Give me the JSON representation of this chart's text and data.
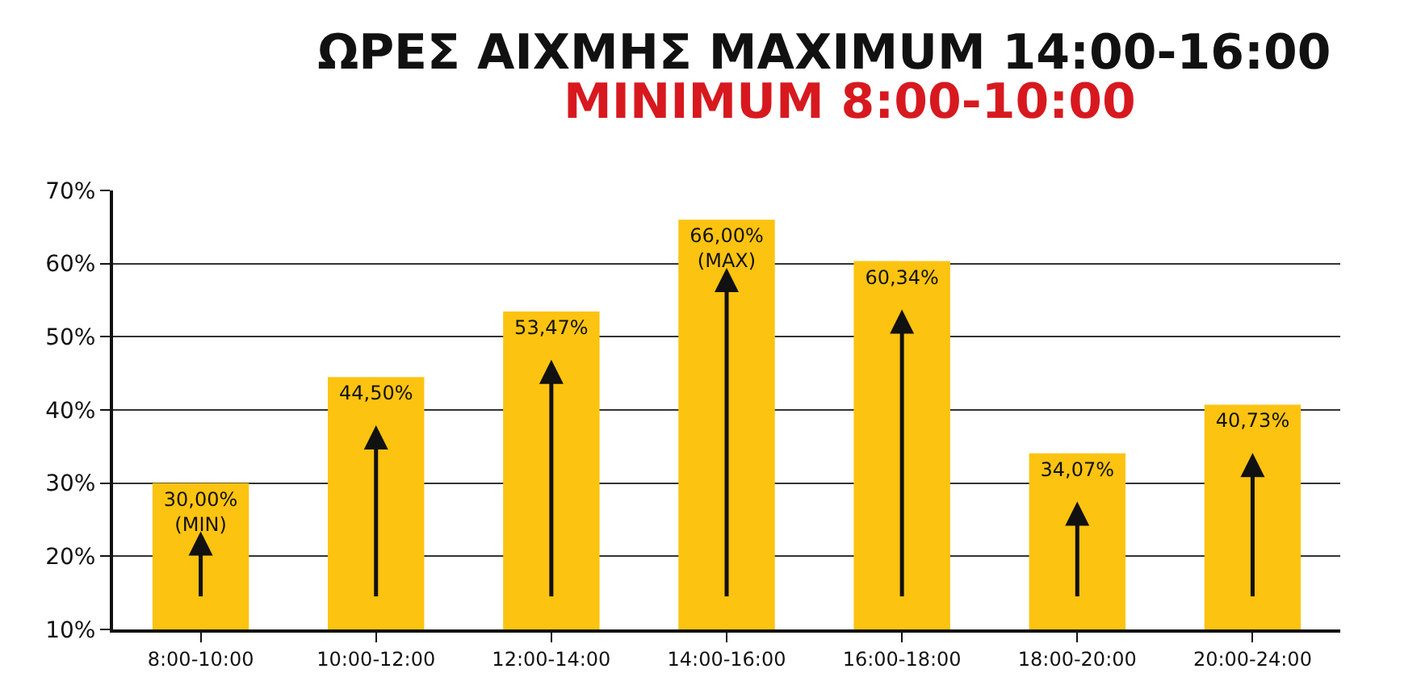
{
  "chart_data": {
    "type": "bar",
    "title": "ΩΡΕΣ ΑΙΧΜΗΣ MAXIMUM 14:00-16:00",
    "subtitle": "MINIMUM 8:00-10:00",
    "categories": [
      "8:00-10:00",
      "10:00-12:00",
      "12:00-14:00",
      "14:00-16:00",
      "16:00-18:00",
      "18:00-20:00",
      "20:00-24:00"
    ],
    "values": [
      30,
      44.5,
      53.47,
      66,
      60.34,
      34.07,
      40.73
    ],
    "value_labels": [
      "30,00%\n(MIN)",
      "44,50%",
      "53,47%",
      "66,00%\n(MAX)",
      "60,34%",
      "34,07%",
      "40,73%"
    ],
    "color": "#fdc311",
    "ylim": [
      10,
      70
    ],
    "yticks": [
      {
        "value": 10,
        "label": "10%"
      },
      {
        "value": 20,
        "label": "20%"
      },
      {
        "value": 30,
        "label": "30%"
      },
      {
        "value": 40,
        "label": "40%"
      },
      {
        "value": 50,
        "label": "50%"
      },
      {
        "value": 60,
        "label": "60%"
      },
      {
        "value": 70,
        "label": "70%"
      }
    ],
    "grid": "y",
    "legend": false
  }
}
